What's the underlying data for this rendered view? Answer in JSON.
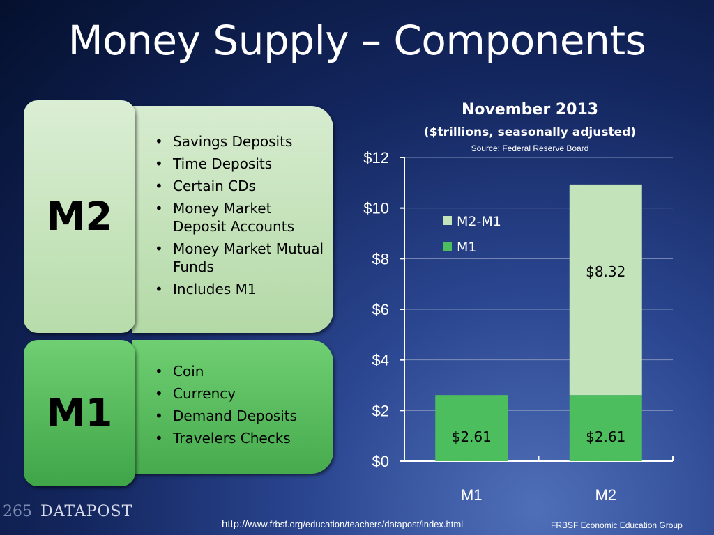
{
  "slide": {
    "title": "Money Supply – Components"
  },
  "m2_tile": {
    "label": "M2",
    "items": [
      "Savings Deposits",
      "Time Deposits",
      "Certain CDs",
      "Money Market Deposit Accounts",
      "Money Market Mutual Funds",
      "Includes M1"
    ]
  },
  "m1_tile": {
    "label": "M1",
    "items": [
      "Coin",
      "Currency",
      "Demand Deposits",
      "Travelers Checks"
    ]
  },
  "bullet": "•",
  "colors": {
    "m1": "#4dbe5e",
    "m2_minus_m1": "#c3e3bb",
    "axis": "#ffffff"
  },
  "chart_data": {
    "type": "bar",
    "stacked": true,
    "title": "November 2013",
    "subtitle": "($trillions, seasonally adjusted)",
    "source": "Source: Federal Reserve Board",
    "categories": [
      "M1",
      "M2"
    ],
    "series": [
      {
        "name": "M1",
        "values": [
          2.61,
          2.61
        ],
        "labels": [
          "$2.61",
          "$2.61"
        ]
      },
      {
        "name": "M2-M1",
        "values": [
          0,
          8.32
        ],
        "labels": [
          "",
          "$8.32"
        ]
      }
    ],
    "ylim": [
      0,
      12
    ],
    "yticks": [
      0,
      2,
      4,
      6,
      8,
      10,
      12
    ],
    "yticklabels": [
      "$0",
      "$2",
      "$4",
      "$6",
      "$8",
      "$10",
      "$12"
    ],
    "legend": {
      "position": "upper-left",
      "entries": [
        "M2-M1",
        "M1"
      ]
    },
    "grid": true
  },
  "footer": {
    "logo_text": "DATAPOST",
    "logo_numbers": "265",
    "url_prefix": "http://",
    "url": "www.frbsf.org/education/teachers/datapost/index.html",
    "org": "FRBSF Economic Education Group"
  }
}
